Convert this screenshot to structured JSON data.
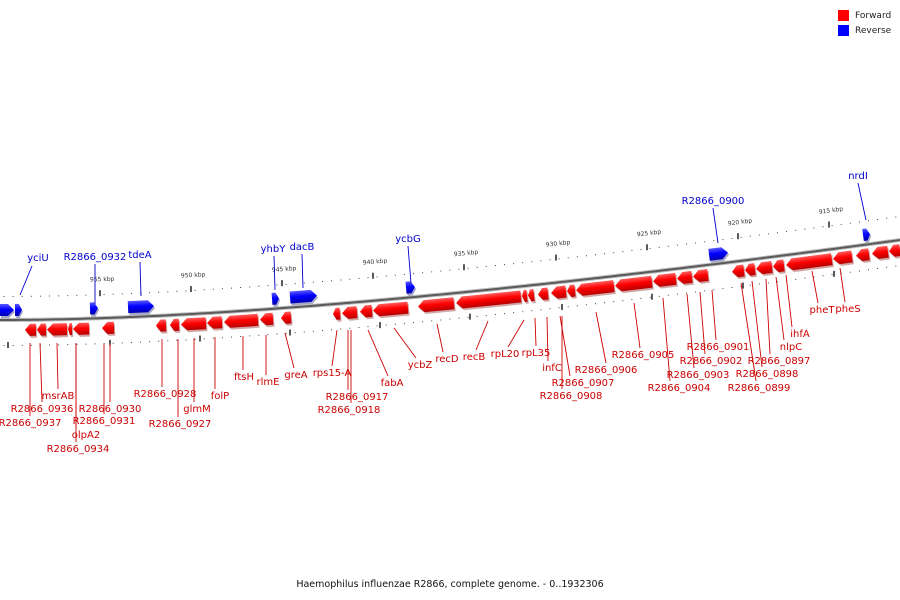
{
  "legend": {
    "forward": {
      "label": "Forward",
      "color": "#ff0000"
    },
    "reverse": {
      "label": "Reverse",
      "color": "#0000ff"
    }
  },
  "caption": "Haemophilus influenzae R2866, complete genome. - 0..1932306",
  "scale_labels": [
    "955 kbp",
    "950 kbp",
    "945 kbp",
    "940 kbp",
    "935 kbp",
    "930 kbp",
    "925 kbp",
    "920 kbp",
    "915 kbp"
  ],
  "reverse_genes": [
    "yciU",
    "R2866_0932",
    "tdeA",
    "yhbY",
    "dacB",
    "ycbG",
    "R2866_0900",
    "nrdI"
  ],
  "forward_genes": [
    "R2866_0937",
    "R2866_0936",
    "msrAB",
    "olpA2",
    "R2866_0934",
    "R2866_0931",
    "R2866_0930",
    "R2866_0928",
    "R2866_0927",
    "glmM",
    "folP",
    "ftsH",
    "rlmE",
    "greA",
    "rps15-A",
    "R2866_0917",
    "R2866_0918",
    "fabA",
    "ycbZ",
    "recD",
    "recB",
    "rpL20",
    "rpL35",
    "infC",
    "R2866_0907",
    "R2866_0908",
    "R2866_0906",
    "R2866_0905",
    "R2866_0904",
    "R2866_0903",
    "R2866_0902",
    "R2866_0901",
    "R2866_0899",
    "R2866_0898",
    "R2866_0897",
    "nlpC",
    "ihfA",
    "pheT",
    "pheS"
  ]
}
